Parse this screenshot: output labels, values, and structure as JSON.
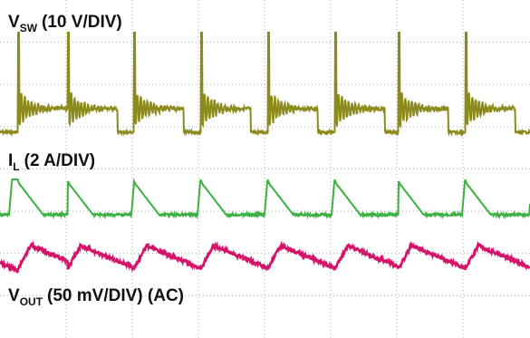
{
  "traces": [
    {
      "symbol": "V",
      "subscript": "SW",
      "scale": "(10 V/DIV)"
    },
    {
      "symbol": "I",
      "subscript": "L",
      "scale": "(2 A/DIV)"
    },
    {
      "symbol": "V",
      "subscript": "OUT",
      "scale": "(50 mV/DIV) (AC)"
    }
  ]
}
